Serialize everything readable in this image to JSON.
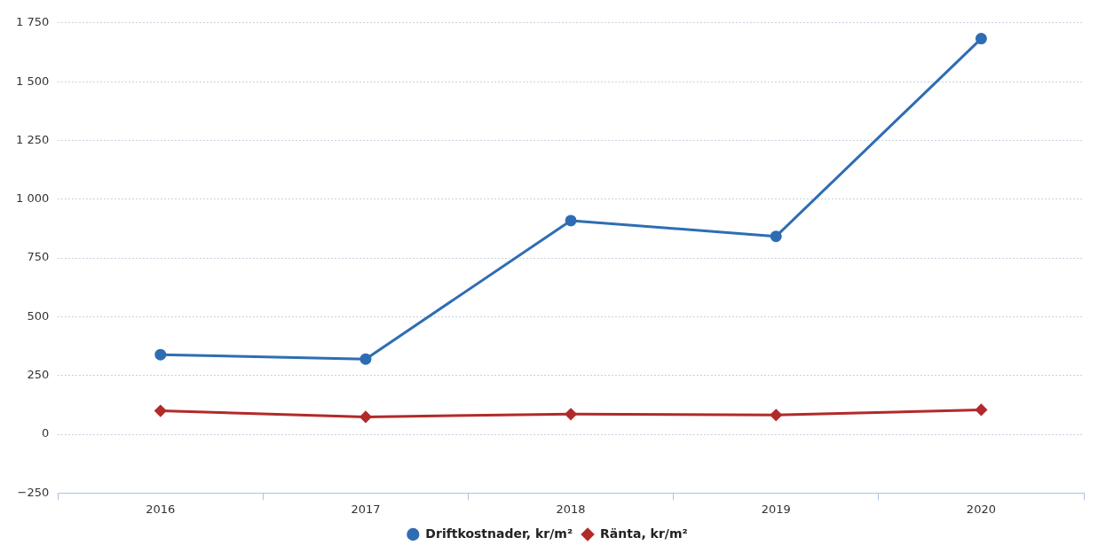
{
  "chart_data": {
    "type": "line",
    "categories": [
      "2016",
      "2017",
      "2018",
      "2019",
      "2020"
    ],
    "series": [
      {
        "name": "Driftkostnader, kr/m²",
        "color": "#2e6db4",
        "marker": "circle",
        "values": [
          339,
          320,
          909,
          842,
          1683
        ]
      },
      {
        "name": "Ränta, kr/m²",
        "color": "#b22a2a",
        "marker": "diamond",
        "values": [
          100,
          74,
          86,
          82,
          104
        ]
      }
    ],
    "ylim": [
      -250,
      1750
    ],
    "yticks": [
      {
        "value": -250,
        "label": "−250"
      },
      0,
      250,
      500,
      750,
      {
        "value": 1000,
        "label": "1 000"
      },
      {
        "value": 1250,
        "label": "1 250"
      },
      {
        "value": 1500,
        "label": "1 500"
      },
      {
        "value": 1750,
        "label": "1 750"
      }
    ],
    "grid": "y",
    "legend": "bottom"
  }
}
